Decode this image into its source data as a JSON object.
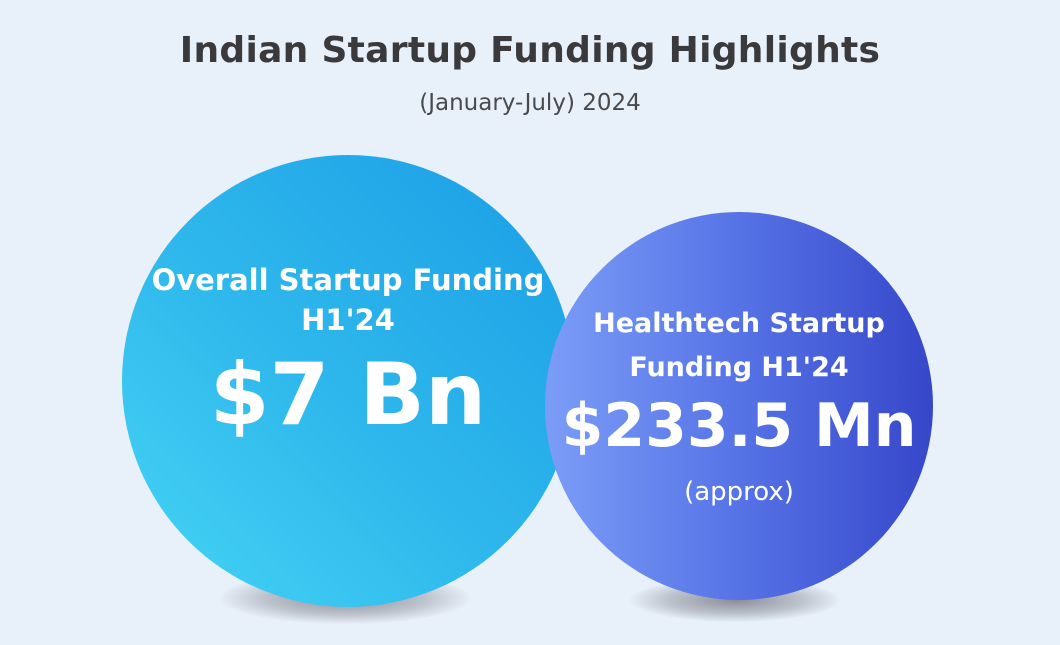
{
  "header": {
    "title": "Indian Startup Funding Highlights",
    "subtitle": "(January-July) 2024"
  },
  "overall": {
    "label_line1": "Overall Startup Funding",
    "label_line2": "H1'24",
    "value": "$7 Bn"
  },
  "healthtech": {
    "label_line1": "Healthtech Startup",
    "label_line2": "Funding H1'24",
    "value": "$233.5 Mn",
    "note": "(approx)"
  },
  "colors": {
    "background": "#e8f0fa",
    "overall_circle": "#2fb8ec",
    "healthtech_circle": "#5673e6",
    "title_text": "#3a3a3c"
  }
}
